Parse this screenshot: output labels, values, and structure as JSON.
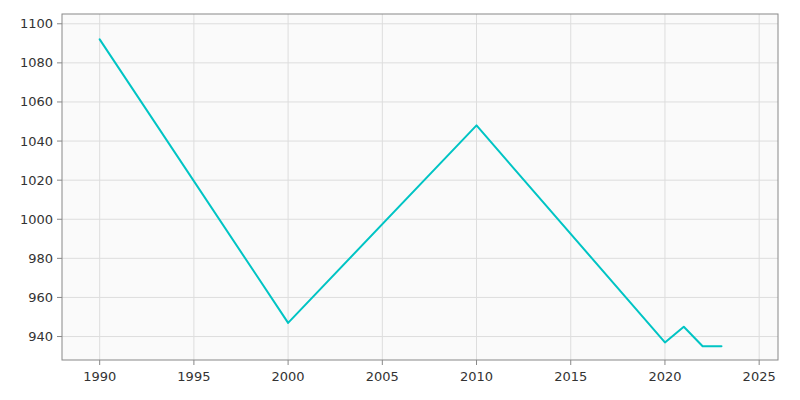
{
  "chart_data": {
    "type": "line",
    "x": [
      1990,
      2000,
      2010,
      2020,
      2021,
      2022,
      2023
    ],
    "values": [
      1092,
      947,
      1048,
      937,
      945,
      935,
      935
    ],
    "color": "#00C4C4",
    "xlim": [
      1988,
      2026
    ],
    "ylim": [
      928,
      1105
    ],
    "xticks": [
      1990,
      1995,
      2000,
      2005,
      2010,
      2015,
      2020,
      2025
    ],
    "yticks": [
      940,
      960,
      980,
      1000,
      1020,
      1040,
      1060,
      1080,
      1100
    ],
    "grid": true
  }
}
